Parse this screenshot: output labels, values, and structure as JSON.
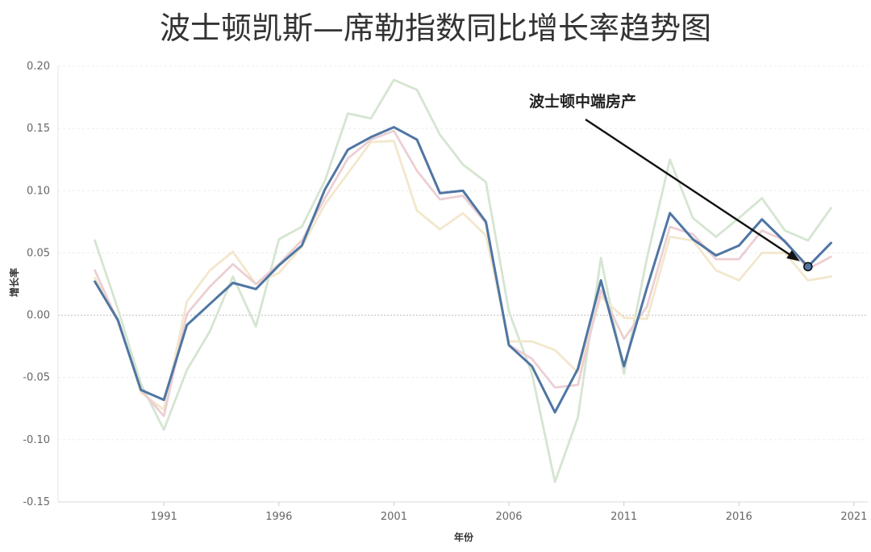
{
  "chart_data": {
    "type": "line",
    "title": "波士顿凯斯—席勒指数同比增长率趋势图",
    "xlabel": "年份",
    "ylabel": "增长率",
    "xlim": [
      1986.4,
      2021.6
    ],
    "ylim": [
      -0.15,
      0.2
    ],
    "xticks": [
      1991,
      1996,
      2001,
      2006,
      2011,
      2016,
      2021
    ],
    "yticks": [
      0.2,
      0.15,
      0.1,
      0.05,
      0.0,
      -0.05,
      -0.1,
      -0.15
    ],
    "ytick_labels": [
      "0.20",
      "0.15",
      "0.10",
      "0.05",
      "0.00",
      "-0.05",
      "-0.10",
      "-0.15"
    ],
    "grid": true,
    "x": [
      1988,
      1989,
      1990,
      1991,
      1992,
      1993,
      1994,
      1995,
      1996,
      1997,
      1998,
      1999,
      2000,
      2001,
      2002,
      2003,
      2004,
      2005,
      2006,
      2007,
      2008,
      2009,
      2010,
      2011,
      2012,
      2013,
      2014,
      2015,
      2016,
      2017,
      2018,
      2019,
      2020
    ],
    "series": [
      {
        "name": "",
        "color": "#d5e5d1",
        "values": [
          0.06,
          0.005,
          -0.055,
          -0.092,
          -0.044,
          -0.013,
          0.031,
          -0.009,
          0.061,
          0.071,
          0.108,
          0.162,
          0.158,
          0.189,
          0.181,
          0.145,
          0.121,
          0.107,
          0.003,
          -0.047,
          -0.134,
          -0.082,
          0.046,
          -0.047,
          0.046,
          0.125,
          0.078,
          0.063,
          0.078,
          0.094,
          0.068,
          0.06,
          0.086
        ]
      },
      {
        "name": "",
        "color": "#f3e7cc",
        "values": [
          0.03,
          -0.003,
          -0.062,
          -0.076,
          0.011,
          0.036,
          0.051,
          0.025,
          0.034,
          0.055,
          0.089,
          0.114,
          0.139,
          0.14,
          0.084,
          0.069,
          0.082,
          0.064,
          -0.021,
          -0.021,
          -0.028,
          -0.046,
          0.015,
          -0.002,
          -0.003,
          0.063,
          0.06,
          0.036,
          0.028,
          0.05,
          0.05,
          0.028,
          0.031
        ]
      },
      {
        "name": "",
        "color": "#eccfd3",
        "values": [
          0.036,
          -0.005,
          -0.06,
          -0.081,
          0.001,
          0.023,
          0.041,
          0.025,
          0.041,
          0.06,
          0.094,
          0.126,
          0.141,
          0.148,
          0.116,
          0.093,
          0.096,
          0.074,
          -0.024,
          -0.035,
          -0.058,
          -0.056,
          0.02,
          -0.019,
          0.007,
          0.071,
          0.065,
          0.045,
          0.045,
          0.068,
          0.06,
          0.037,
          0.047
        ]
      },
      {
        "name": "波士顿中端房产",
        "color": "#4f76a3",
        "values": [
          0.027,
          -0.004,
          -0.06,
          -0.068,
          -0.008,
          0.009,
          0.026,
          0.021,
          0.04,
          0.056,
          0.101,
          0.133,
          0.143,
          0.151,
          0.141,
          0.098,
          0.1,
          0.075,
          -0.024,
          -0.041,
          -0.078,
          -0.043,
          0.028,
          -0.041,
          0.022,
          0.082,
          0.061,
          0.048,
          0.056,
          0.077,
          0.059,
          0.039,
          0.058
        ]
      }
    ],
    "highlight_point": {
      "x": 2019,
      "y": 0.039
    },
    "annotation": {
      "text": "波士顿中端房产",
      "target_x": 2019,
      "target_y": 0.039
    },
    "colors": {
      "grid": "#ececec",
      "zero_line": "#bdbdbd",
      "arrow": "#111111"
    }
  }
}
